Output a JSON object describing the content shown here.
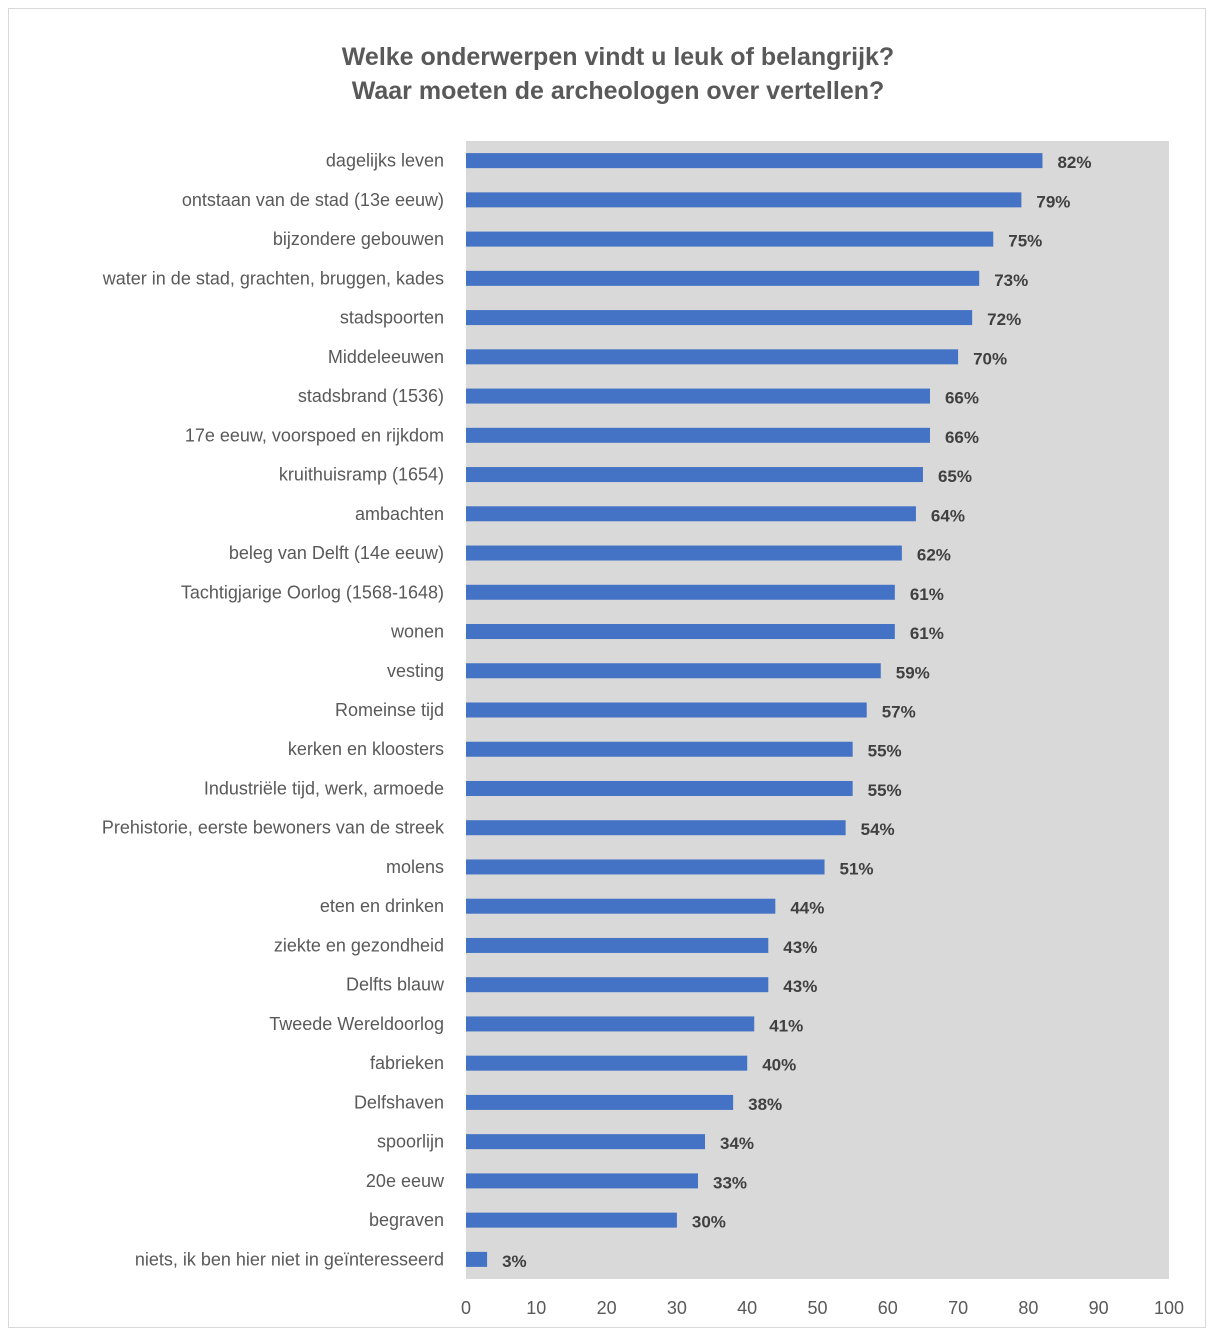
{
  "chart_data": {
    "type": "bar",
    "orientation": "horizontal",
    "title": "Welke onderwerpen vindt u leuk of belangrijk?",
    "subtitle": "Waar moeten de archeologen over vertellen?",
    "categories": [
      "dagelijks leven",
      "ontstaan van de stad (13e eeuw)",
      "bijzondere gebouwen",
      "water in de stad, grachten, bruggen, kades",
      "stadspoorten",
      "Middeleeuwen",
      "stadsbrand (1536)",
      "17e eeuw, voorspoed en rijkdom",
      "kruithuisramp (1654)",
      "ambachten",
      "beleg van Delft (14e eeuw)",
      "Tachtigjarige Oorlog (1568-1648)",
      "wonen",
      "vesting",
      "Romeinse tijd",
      "kerken en kloosters",
      "Industriële tijd, werk, armoede",
      "Prehistorie, eerste bewoners van de streek",
      "molens",
      "eten en drinken",
      "ziekte en gezondheid",
      "Delfts blauw",
      "Tweede Wereldoorlog",
      "fabrieken",
      "Delfshaven",
      "spoorlijn",
      "20e eeuw",
      "begraven",
      "niets, ik ben hier niet in geïnteresseerd"
    ],
    "values": [
      82,
      79,
      75,
      73,
      72,
      70,
      66,
      66,
      65,
      64,
      62,
      61,
      61,
      59,
      57,
      55,
      55,
      54,
      51,
      44,
      43,
      43,
      41,
      40,
      38,
      34,
      33,
      30,
      3
    ],
    "data_labels": [
      "82%",
      "79%",
      "75%",
      "73%",
      "72%",
      "70%",
      "66%",
      "66%",
      "65%",
      "64%",
      "62%",
      "61%",
      "61%",
      "59%",
      "57%",
      "55%",
      "55%",
      "54%",
      "51%",
      "44%",
      "43%",
      "43%",
      "41%",
      "40%",
      "38%",
      "34%",
      "33%",
      "30%",
      "3%"
    ],
    "xlim": [
      0,
      100
    ],
    "x_ticks": [
      "0",
      "10",
      "20",
      "30",
      "40",
      "50",
      "60",
      "70",
      "80",
      "90",
      "100"
    ],
    "grid": false,
    "legend": "none",
    "colors": {
      "bar": "#4472C4",
      "plot_background": "#D9D9D9",
      "title_text": "#595959",
      "label_text": "#595959",
      "data_label_text": "#404040",
      "frame_border": "#D9D9D9"
    }
  }
}
